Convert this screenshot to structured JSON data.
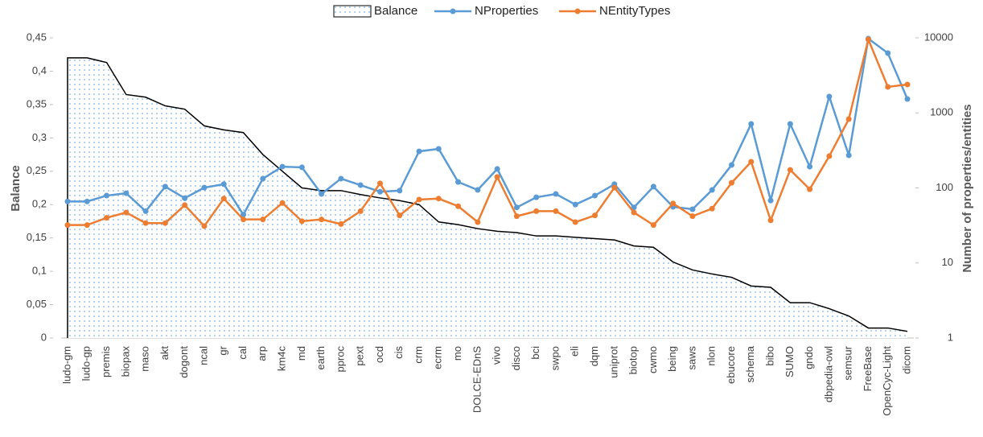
{
  "chart_data": {
    "type": "line",
    "y_label": "Balance",
    "y2_label": "Number of properties/entities",
    "categories": [
      "ludo-gm",
      "ludo-gp",
      "premis",
      "biopax",
      "maso",
      "akt",
      "dogont",
      "ncal",
      "gr",
      "cal",
      "arp",
      "km4c",
      "md",
      "earth",
      "pproc",
      "pext",
      "ocd",
      "cis",
      "crm",
      "ecrm",
      "mo",
      "DOLCE-EDnS",
      "vivo",
      "disco",
      "bci",
      "swpo",
      "eli",
      "dqm",
      "uniprot",
      "biotop",
      "cwmo",
      "being",
      "saws",
      "nlon",
      "ebucore",
      "schema",
      "bibo",
      "SUMO",
      "gndo",
      "dbpedia-owl",
      "semsur",
      "FreeBase",
      "OpenCyc-Light",
      "dicom"
    ],
    "series": [
      {
        "name": "Balance",
        "type": "area",
        "color": "#000000",
        "axis": "y",
        "values": [
          0.42,
          0.42,
          0.413,
          0.365,
          0.361,
          0.348,
          0.343,
          0.318,
          0.312,
          0.308,
          0.275,
          0.25,
          0.225,
          0.221,
          0.221,
          0.215,
          0.21,
          0.206,
          0.2,
          0.174,
          0.17,
          0.164,
          0.16,
          0.158,
          0.153,
          0.153,
          0.151,
          0.149,
          0.147,
          0.138,
          0.136,
          0.114,
          0.102,
          0.096,
          0.091,
          0.078,
          0.076,
          0.053,
          0.053,
          0.044,
          0.033,
          0.015,
          0.015,
          0.01
        ]
      },
      {
        "name": "NProperties",
        "type": "line",
        "color": "#5b9bd5",
        "axis": "y2",
        "values": [
          66,
          66,
          79,
          85,
          49,
          104,
          73,
          101,
          112,
          44,
          133,
          192,
          188,
          83,
          133,
          109,
          89,
          92,
          307,
          331,
          120,
          94,
          179,
          55,
          75,
          83,
          60,
          79,
          112,
          55,
          104,
          56,
          52,
          94,
          202,
          713,
          68,
          713,
          192,
          1649,
          272,
          9750,
          6250,
          1530
        ]
      },
      {
        "name": "NEntityTypes",
        "type": "line",
        "color": "#ed7d31",
        "axis": "y2",
        "values": [
          32,
          32,
          40,
          47,
          34,
          34,
          59,
          31,
          72,
          38,
          38,
          63,
          36,
          38,
          33,
          49,
          115,
          43,
          70,
          72,
          57,
          35,
          140,
          42,
          49,
          49,
          35,
          43,
          101,
          47,
          32,
          62,
          42,
          53,
          117,
          223,
          37,
          174,
          96,
          265,
          826,
          9520,
          2220,
          2390
        ]
      }
    ],
    "ylim": [
      0,
      0.45
    ],
    "yticks": [
      0,
      {
        "value": 0.05,
        "label": "0,05"
      },
      {
        "value": 0.1,
        "label": "0,1"
      },
      {
        "value": 0.15,
        "label": "0,15"
      },
      {
        "value": 0.2,
        "label": "0,2"
      },
      {
        "value": 0.25,
        "label": "0,25"
      },
      {
        "value": 0.3,
        "label": "0,3"
      },
      {
        "value": 0.35,
        "label": "0,35"
      },
      {
        "value": 0.4,
        "label": "0,4"
      },
      {
        "value": 0.45,
        "label": "0,45"
      }
    ],
    "y2lim": [
      1,
      10000
    ],
    "y2ticks": [
      1,
      10,
      100,
      1000,
      10000
    ],
    "y2log": true,
    "legend": "top"
  }
}
